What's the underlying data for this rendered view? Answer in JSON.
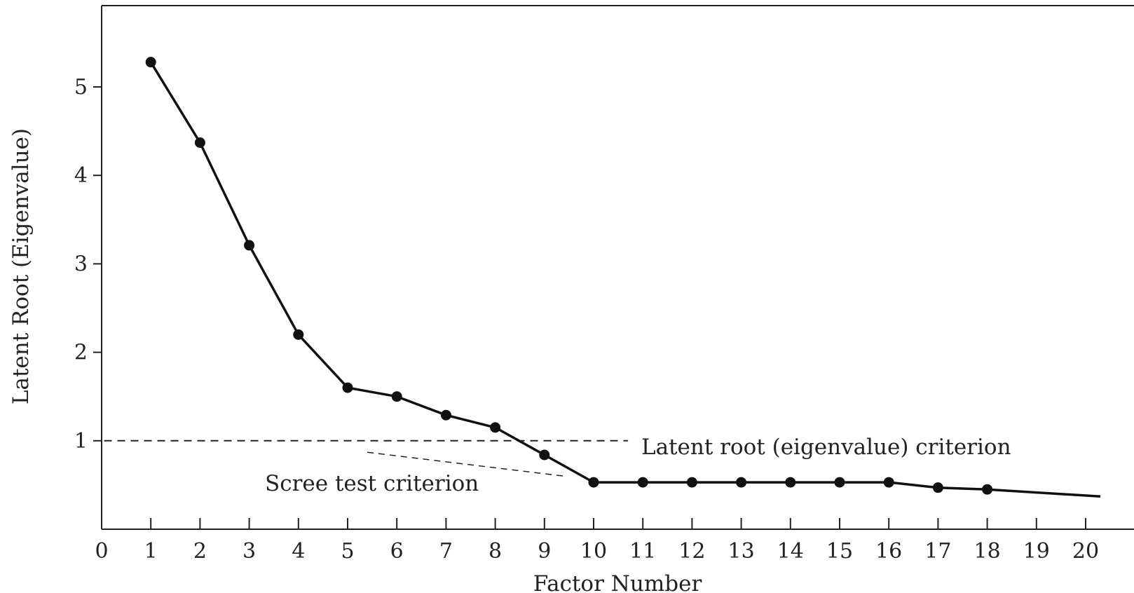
{
  "chart_data": {
    "type": "line",
    "title": "",
    "xlabel": "Factor Number",
    "ylabel": "Latent Root (Eigenvalue)",
    "xlim": [
      0,
      21
    ],
    "ylim": [
      0,
      5.9
    ],
    "x_ticks": [
      0,
      1,
      2,
      3,
      4,
      5,
      6,
      7,
      8,
      9,
      10,
      11,
      12,
      13,
      14,
      15,
      16,
      17,
      18,
      19,
      20
    ],
    "y_ticks": [
      1,
      2,
      3,
      4,
      5
    ],
    "grid": false,
    "series": [
      {
        "x": [
          1,
          2,
          3,
          4,
          5,
          6,
          7,
          8,
          9,
          10,
          11,
          12,
          13,
          14,
          15,
          16,
          17,
          18
        ],
        "values": [
          5.28,
          4.37,
          3.21,
          2.2,
          1.6,
          1.5,
          1.29,
          1.15,
          0.84,
          0.53,
          0.53,
          0.53,
          0.53,
          0.53,
          0.53,
          0.53,
          0.47,
          0.45
        ],
        "line_end": {
          "x": 20.3,
          "y": 0.37
        },
        "color": "#111111"
      }
    ],
    "reference_lines": [
      {
        "label": "Latent root (eigenvalue) criterion",
        "from": [
          0.05,
          1.0
        ],
        "to": [
          10.7,
          1.0
        ]
      },
      {
        "label": "Scree test criterion",
        "from": [
          5.4,
          0.87
        ],
        "to": [
          9.4,
          0.6
        ]
      }
    ]
  }
}
